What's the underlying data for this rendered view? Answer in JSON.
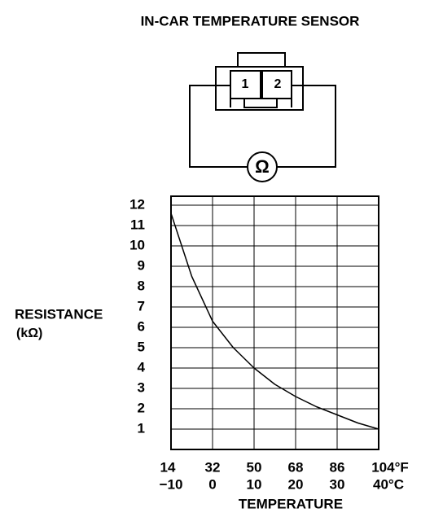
{
  "diagram": {
    "title": "IN-CAR TEMPERATURE SENSOR",
    "pins": [
      "1",
      "2"
    ],
    "meter": "Ω"
  },
  "chart_data": {
    "type": "line",
    "ylabel": [
      "RESISTANCE",
      "(kΩ)"
    ],
    "xlabel": "TEMPERATURE",
    "x": [
      -10,
      -5,
      0,
      5,
      10,
      15,
      20,
      25,
      30,
      35,
      40
    ],
    "series": [
      {
        "color": "#000000",
        "values": [
          11.6,
          8.5,
          6.3,
          5.0,
          4.0,
          3.2,
          2.6,
          2.1,
          1.7,
          1.3,
          1.0
        ]
      }
    ],
    "xlim": [
      -10,
      40
    ],
    "xticks": [
      {
        "value": -10,
        "label": "−10"
      },
      0,
      10,
      20,
      30,
      {
        "value": 40,
        "label": "40°C"
      }
    ],
    "x2ticks": [
      {
        "value": -10,
        "label": "14"
      },
      {
        "value": 0,
        "label": "32"
      },
      {
        "value": 10,
        "label": "50"
      },
      {
        "value": 20,
        "label": "68"
      },
      {
        "value": 30,
        "label": "86"
      },
      {
        "value": 40,
        "label": "104°F"
      }
    ],
    "ylim": [
      0,
      12
    ],
    "yticks": [
      1,
      2,
      3,
      4,
      5,
      6,
      7,
      8,
      9,
      10,
      11,
      12
    ],
    "grid": true
  }
}
